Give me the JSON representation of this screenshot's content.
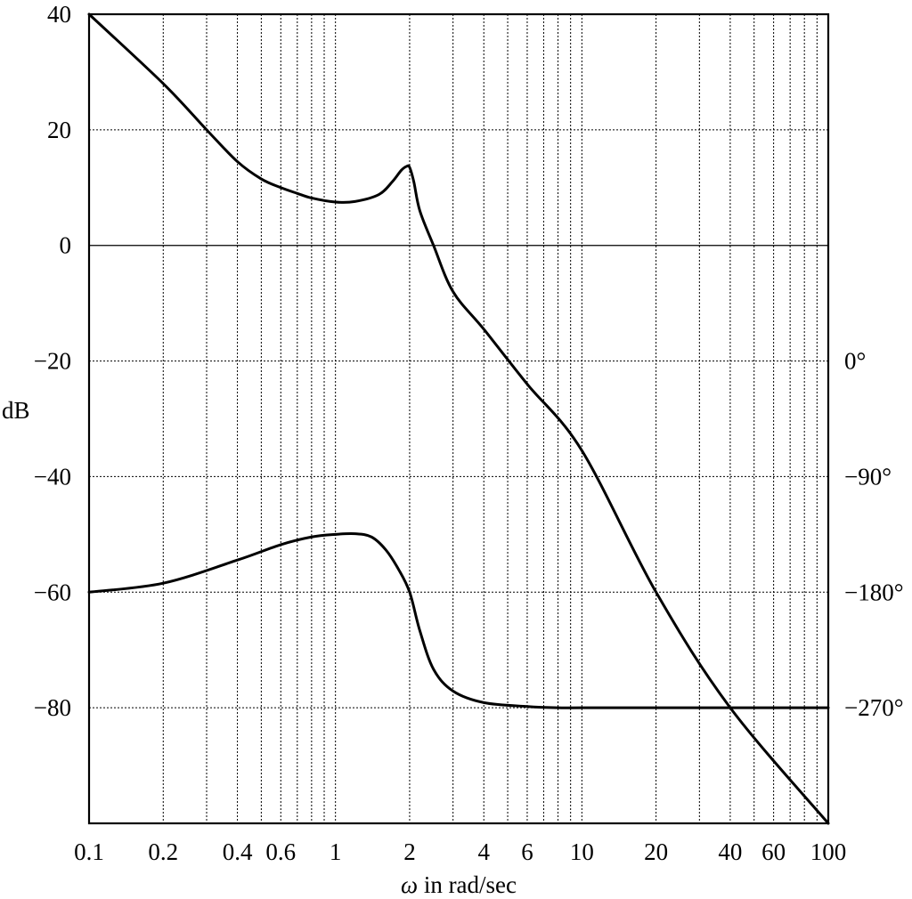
{
  "chart_data": {
    "type": "line",
    "title": "",
    "x_scale": "log",
    "xlim": [
      0.1,
      100
    ],
    "ylim": [
      -100,
      40
    ],
    "phase_lim": [
      -270,
      90
    ],
    "xlabel": "ω in rad/sec",
    "xlabel_prefix": "ω",
    "xlabel_suffix": " in rad/sec",
    "ylabel": "dB",
    "x_ticks": [
      0.1,
      0.2,
      0.4,
      0.6,
      1,
      2,
      4,
      6,
      10,
      20,
      40,
      60,
      100
    ],
    "x_tick_labels": [
      "0.1",
      "0.2",
      "0.4",
      "0.6",
      "1",
      "2",
      "4",
      "6",
      "10",
      "20",
      "40",
      "60",
      "100"
    ],
    "x_grid": [
      0.1,
      0.2,
      0.3,
      0.4,
      0.5,
      0.6,
      0.7,
      0.8,
      0.9,
      1,
      2,
      3,
      4,
      5,
      6,
      7,
      8,
      9,
      10,
      20,
      30,
      40,
      50,
      60,
      70,
      80,
      90,
      100
    ],
    "y_ticks": [
      40,
      20,
      0,
      -20,
      -40,
      -60,
      -80
    ],
    "y_tick_labels": [
      "40",
      "20",
      "0",
      "−20",
      "−40",
      "−60",
      "−80"
    ],
    "phase_ticks": [
      0,
      -90,
      -180,
      -270
    ],
    "phase_tick_labels": [
      "0°",
      "−90°",
      "−180°",
      "−270°"
    ],
    "grid": true,
    "series": [
      {
        "axis": "magnitude_dB",
        "x": [
          0.1,
          0.2,
          0.3,
          0.4,
          0.5,
          0.6,
          0.7,
          0.8,
          1.0,
          1.2,
          1.5,
          1.7,
          1.85,
          1.95,
          2.0,
          2.08,
          2.2,
          2.5,
          3.0,
          4.0,
          6.0,
          10,
          20,
          40,
          100
        ],
        "y": [
          40,
          28,
          20,
          14.5,
          11.5,
          10,
          9,
          8.2,
          7.5,
          7.6,
          8.8,
          11,
          13,
          13.7,
          13.5,
          11,
          6,
          0,
          -8,
          -14.5,
          -24,
          -35.5,
          -60,
          -80,
          -100
        ]
      },
      {
        "axis": "phase_deg",
        "x": [
          0.1,
          0.2,
          0.4,
          0.6,
          0.8,
          1.0,
          1.2,
          1.4,
          1.6,
          1.8,
          2.0,
          2.2,
          2.5,
          3.0,
          4.0,
          6.0,
          8.0,
          10,
          20,
          100
        ],
        "y": [
          -180,
          -173,
          -155,
          -143,
          -137,
          -135,
          -134.5,
          -137,
          -147,
          -162,
          -180,
          -210,
          -240,
          -257,
          -266,
          -269,
          -270,
          -270,
          -270,
          -270
        ]
      }
    ]
  }
}
